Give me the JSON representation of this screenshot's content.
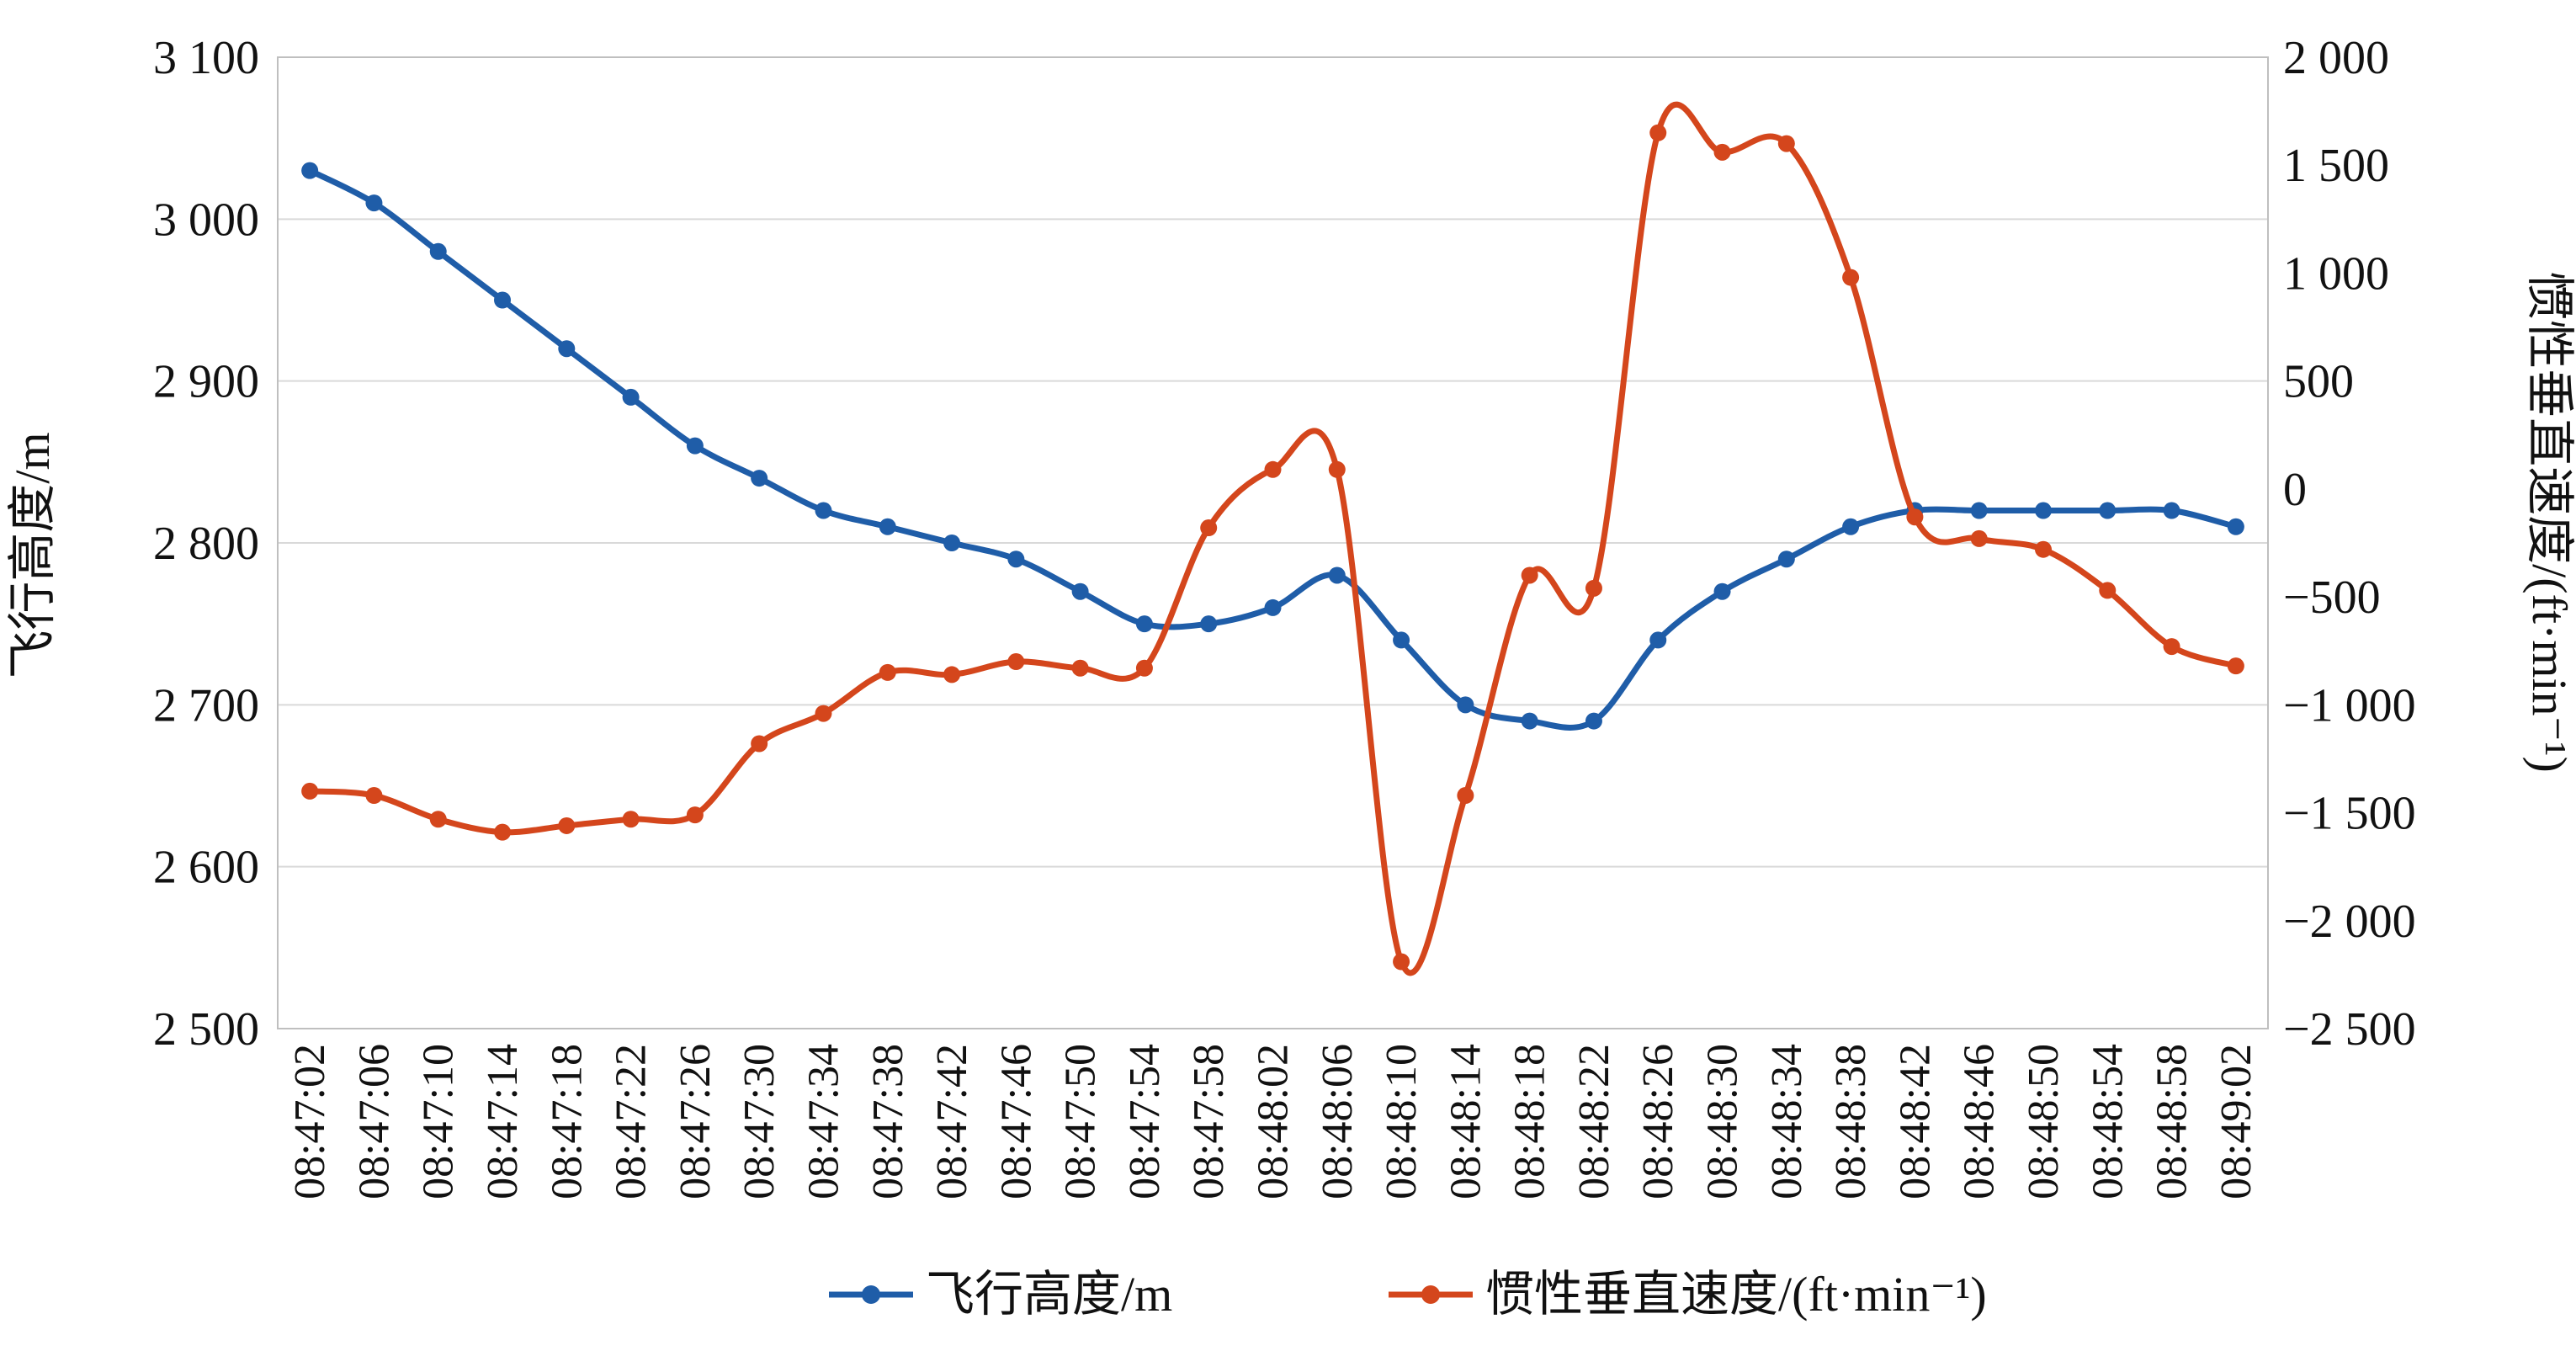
{
  "chart_data": {
    "type": "line",
    "x": [
      "08:47:02",
      "08:47:06",
      "08:47:10",
      "08:47:14",
      "08:47:18",
      "08:47:22",
      "08:47:26",
      "08:47:30",
      "08:47:34",
      "08:47:38",
      "08:47:42",
      "08:47:46",
      "08:47:50",
      "08:47:54",
      "08:47:58",
      "08:48:02",
      "08:48:06",
      "08:48:10",
      "08:48:14",
      "08:48:18",
      "08:48:22",
      "08:48:26",
      "08:48:30",
      "08:48:34",
      "08:48:38",
      "08:48:42",
      "08:48:46",
      "08:48:50",
      "08:48:54",
      "08:48:58",
      "08:49:02"
    ],
    "series": [
      {
        "name": "飞行高度/m",
        "axis": "left",
        "color": "#1F5DA8",
        "values": [
          3030,
          3010,
          2980,
          2950,
          2920,
          2890,
          2860,
          2840,
          2820,
          2810,
          2800,
          2790,
          2770,
          2750,
          2750,
          2760,
          2780,
          2740,
          2700,
          2690,
          2690,
          2740,
          2770,
          2790,
          2810,
          2820,
          2820,
          2820,
          2820,
          2820,
          2810
        ]
      },
      {
        "name": "惯性垂直速度/(ft·min⁻¹)",
        "axis": "right",
        "color": "#D4461C",
        "values": [
          -1400,
          -1420,
          -1530,
          -1590,
          -1560,
          -1530,
          -1510,
          -1180,
          -1040,
          -850,
          -860,
          -800,
          -830,
          -830,
          -180,
          90,
          90,
          -2190,
          -1420,
          -400,
          -460,
          1650,
          1560,
          1600,
          980,
          -130,
          -230,
          -280,
          -470,
          -730,
          -820
        ]
      }
    ],
    "y_left": {
      "label": "飞行高度/m",
      "range": [
        2500,
        3100
      ],
      "ticks": [
        "2 500",
        "2 600",
        "2 700",
        "2 800",
        "2 900",
        "3 000",
        "3 100"
      ]
    },
    "y_right": {
      "label": "惯性垂直速度/(ft·min⁻¹)",
      "range": [
        -2500,
        2000
      ],
      "ticks": [
        "−2 500",
        "−2 000",
        "−1 500",
        "−1 000",
        "−500",
        "0",
        "500",
        "1 000",
        "1 500",
        "2 000"
      ]
    },
    "grid": "horizontal",
    "legend": "bottom"
  }
}
